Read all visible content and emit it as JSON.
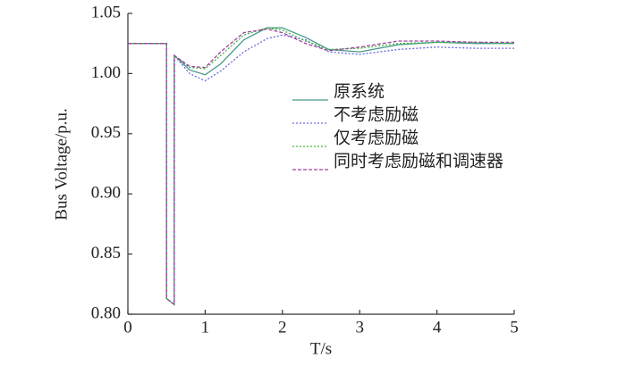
{
  "chart_data": {
    "type": "line",
    "xlabel": "T/s",
    "ylabel": "Bus Voltage/p.u.",
    "x": [
      0,
      0.5,
      0.501,
      0.6,
      0.601,
      0.8,
      1.0,
      1.2,
      1.5,
      1.8,
      2.0,
      2.3,
      2.6,
      3.0,
      3.5,
      4.0,
      4.5,
      5.0
    ],
    "series": [
      {
        "name": "原系统",
        "color": "#4a9a8a",
        "dash": "none",
        "values": [
          1.025,
          1.025,
          0.813,
          0.808,
          1.015,
          1.003,
          0.999,
          1.008,
          1.028,
          1.038,
          1.038,
          1.03,
          1.02,
          1.018,
          1.024,
          1.026,
          1.025,
          1.025
        ]
      },
      {
        "name": "不考虑励磁",
        "color": "#6a6ae0",
        "dash": "2,2",
        "values": [
          1.025,
          1.025,
          0.813,
          0.808,
          1.015,
          1.0,
          0.994,
          1.002,
          1.018,
          1.029,
          1.032,
          1.028,
          1.018,
          1.016,
          1.02,
          1.022,
          1.021,
          1.021
        ]
      },
      {
        "name": "仅考虑励磁",
        "color": "#3ab83a",
        "dash": "2,2",
        "values": [
          1.025,
          1.025,
          0.813,
          0.808,
          1.015,
          1.005,
          1.004,
          1.015,
          1.032,
          1.038,
          1.036,
          1.027,
          1.02,
          1.021,
          1.025,
          1.026,
          1.026,
          1.025
        ]
      },
      {
        "name": "同时考虑励磁和调速器",
        "color": "#a040a0",
        "dash": "4,2",
        "values": [
          1.025,
          1.025,
          0.813,
          0.808,
          1.015,
          1.006,
          1.005,
          1.018,
          1.034,
          1.037,
          1.034,
          1.025,
          1.019,
          1.022,
          1.027,
          1.027,
          1.026,
          1.026
        ]
      }
    ],
    "xlim": [
      0,
      5
    ],
    "xticks": [
      0,
      1,
      2,
      3,
      4,
      5
    ],
    "ylim": [
      0.8,
      1.05
    ],
    "yticks": [
      {
        "value": 0.8,
        "label": "0.80"
      },
      0.85,
      {
        "value": 0.9,
        "label": "0.90"
      },
      0.95,
      {
        "value": 1.0,
        "label": "1.00"
      },
      1.05
    ],
    "grid": false,
    "legend": "upper-center"
  }
}
